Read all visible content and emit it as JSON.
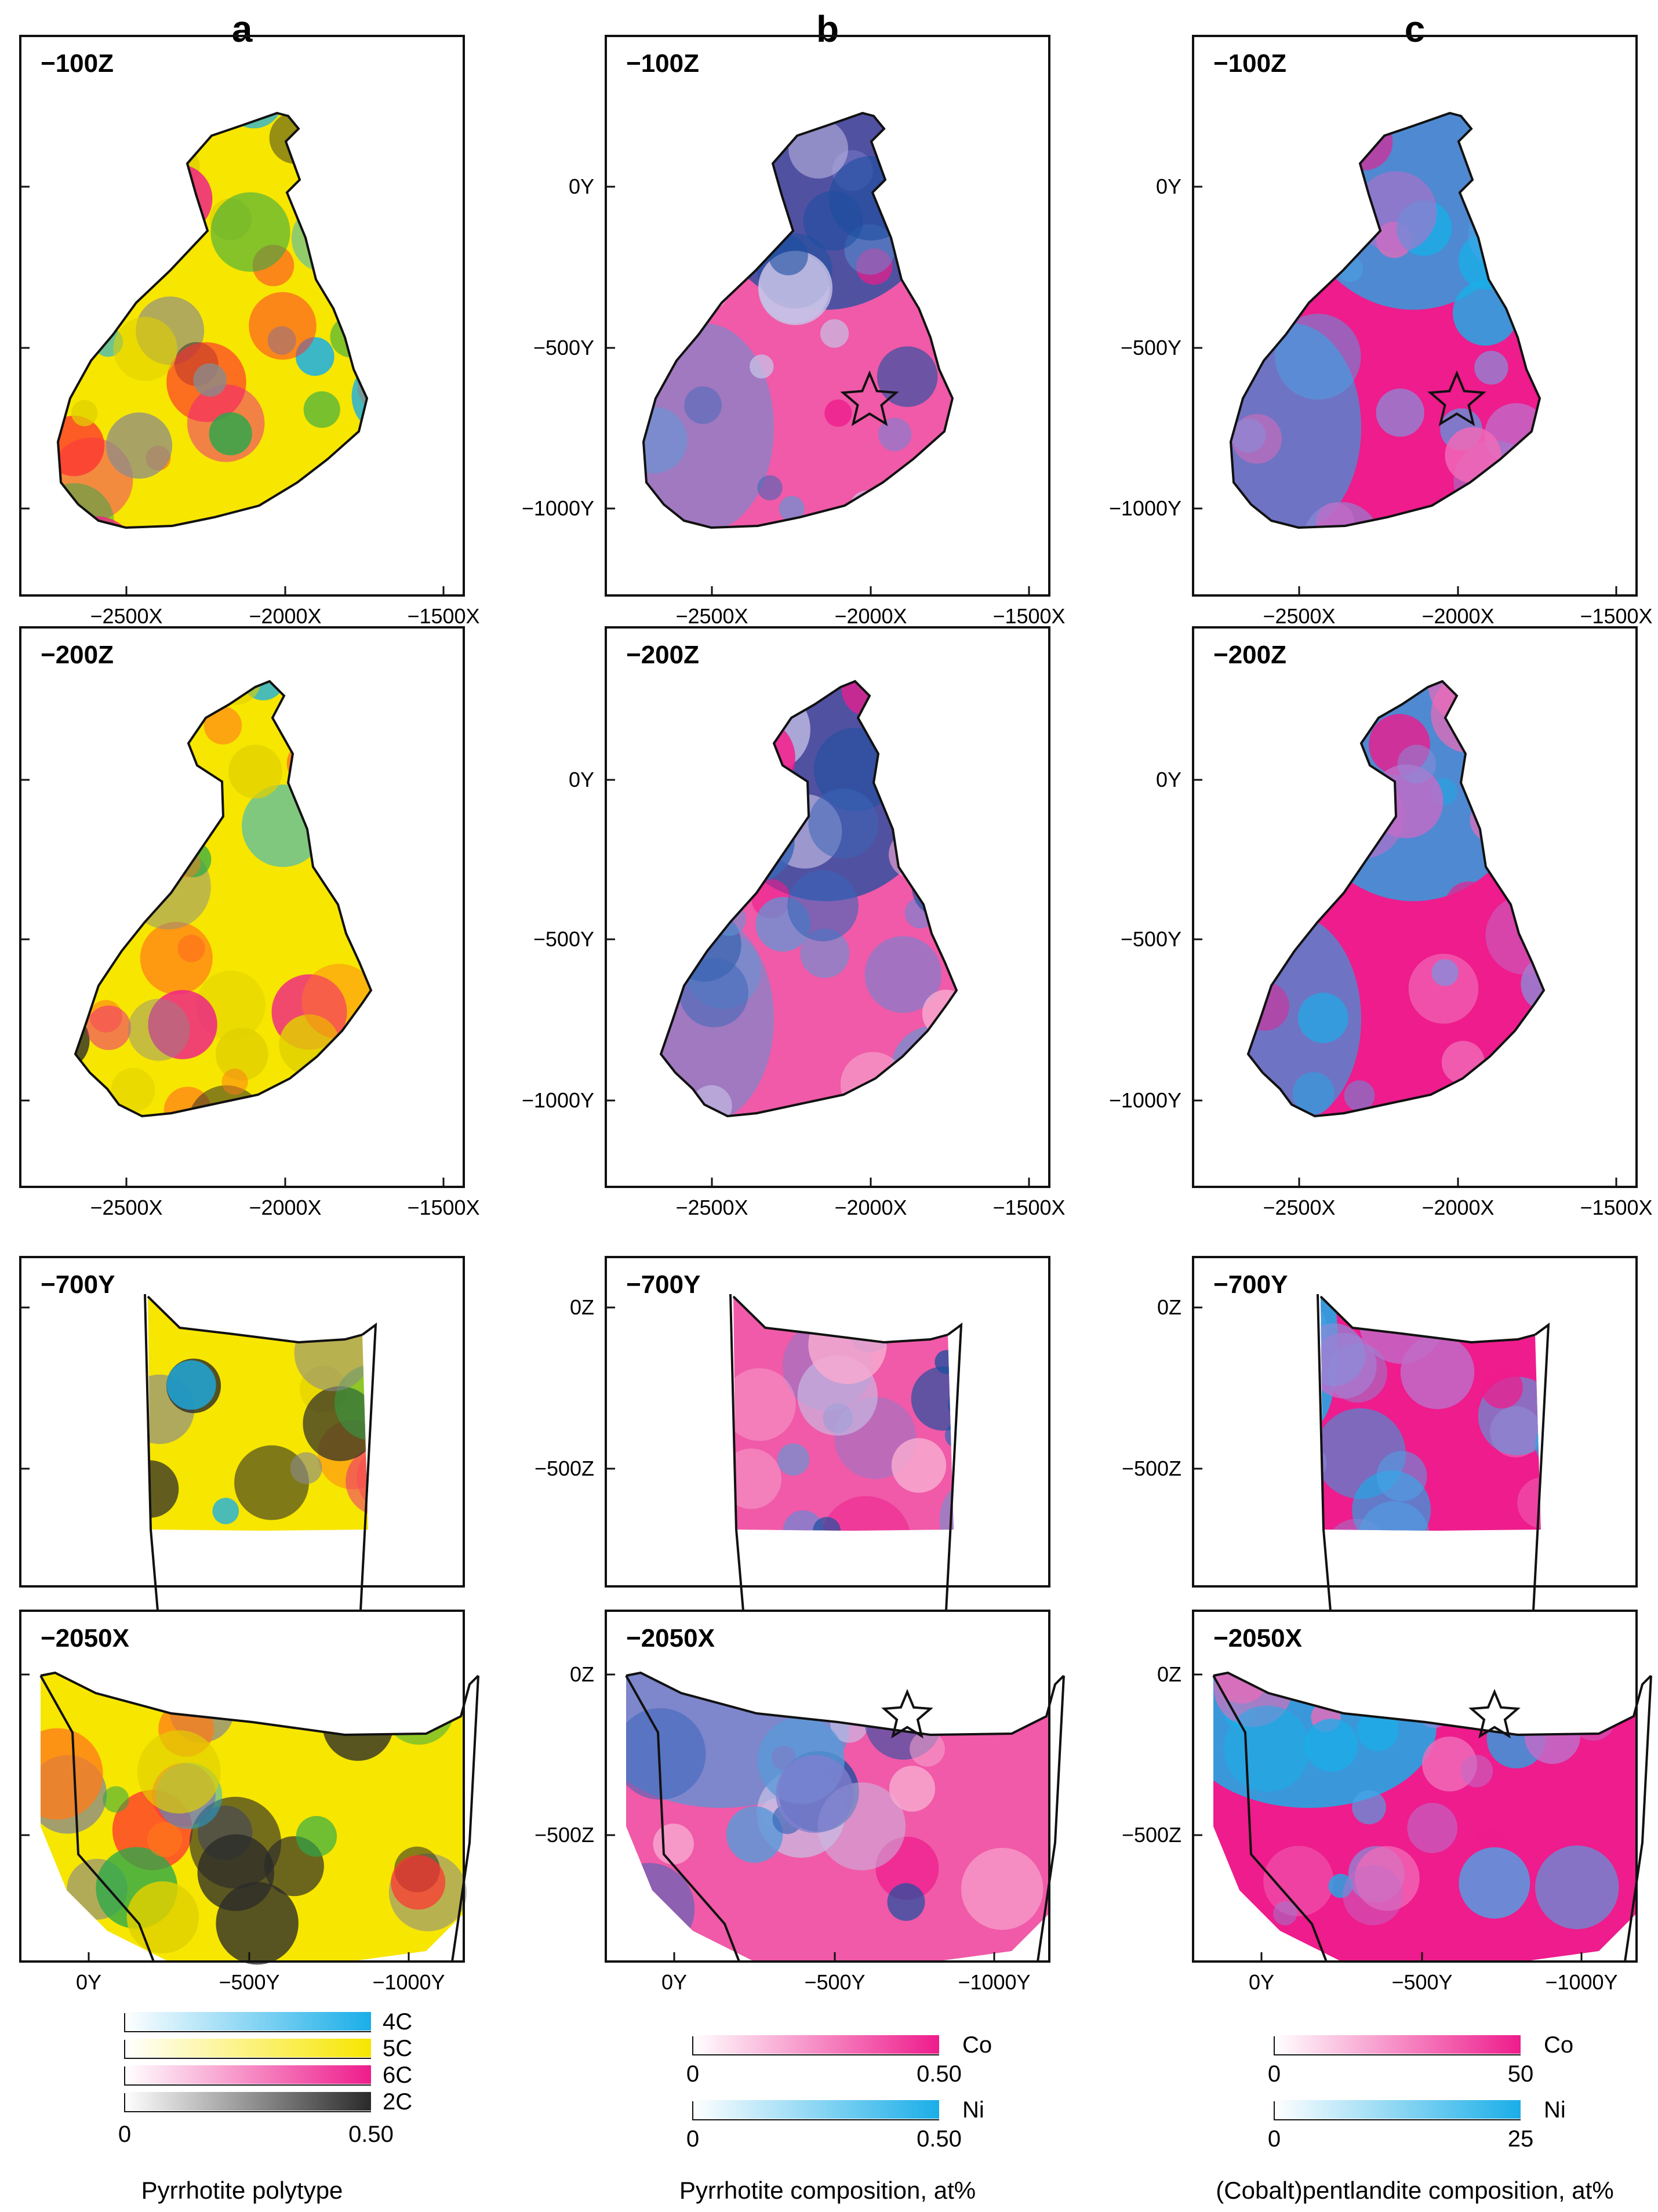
{
  "columns": [
    {
      "letter": "a",
      "caption": "Pyrrhotite polytype",
      "scheme": "polytype",
      "legend": {
        "bars": [
          {
            "label": "4C",
            "color": "#1aaee8"
          },
          {
            "label": "5C",
            "color": "#f7e600"
          },
          {
            "label": "6C",
            "color": "#ee1c8c"
          },
          {
            "label": "2C",
            "color": "#2a2a2a"
          }
        ],
        "ticks": [
          "0",
          "0.50"
        ]
      }
    },
    {
      "letter": "b",
      "caption": "Pyrrhotite composition, at%",
      "scheme": "pyrrhotite",
      "legend": {
        "bars": [
          {
            "label": "Co",
            "color": "#ee1c8c",
            "ticks": [
              "0",
              "0.50"
            ]
          },
          {
            "label": "Ni",
            "color": "#1aaee8",
            "ticks": [
              "0",
              "0.50"
            ]
          }
        ]
      }
    },
    {
      "letter": "c",
      "caption": "(Cobalt)pentlandite composition, at%",
      "scheme": "pentlandite",
      "legend": {
        "bars": [
          {
            "label": "Co",
            "color": "#ee1c8c",
            "ticks": [
              "0",
              "50"
            ]
          },
          {
            "label": "Ni",
            "color": "#1aaee8",
            "ticks": [
              "0",
              "25"
            ]
          }
        ]
      }
    }
  ],
  "rows": [
    {
      "label": "−100Z",
      "view": "plan",
      "y_ticks": [
        "0Y",
        "−500Y",
        "−1000Y"
      ],
      "x_ticks": [
        "−2500X",
        "−2000X",
        "−1500X"
      ],
      "star": [
        false,
        true,
        true
      ]
    },
    {
      "label": "−200Z",
      "view": "plan",
      "y_ticks": [
        "0Y",
        "−500Y",
        "−1000Y"
      ],
      "x_ticks": [
        "−2500X",
        "−2000X",
        "−1500X"
      ],
      "star": [
        false,
        false,
        false
      ]
    },
    {
      "label": "−700Y",
      "view": "sectionY",
      "y_ticks": [
        "0Z",
        "−500Z"
      ],
      "x_ticks": [],
      "star": [
        false,
        false,
        false
      ]
    },
    {
      "label": "−2050X",
      "view": "sectionX",
      "y_ticks": [
        "0Z",
        "−500Z"
      ],
      "x_ticks": [
        "0Y",
        "−500Y",
        "−1000Y"
      ],
      "star": [
        false,
        true,
        true
      ]
    }
  ],
  "colors": {
    "pink": "#ee1c8c",
    "blue": "#1aaee8",
    "navy": "#1c4fa0",
    "yellow": "#f7e600",
    "green": "#2aa84a",
    "black": "#2a2a2a"
  }
}
